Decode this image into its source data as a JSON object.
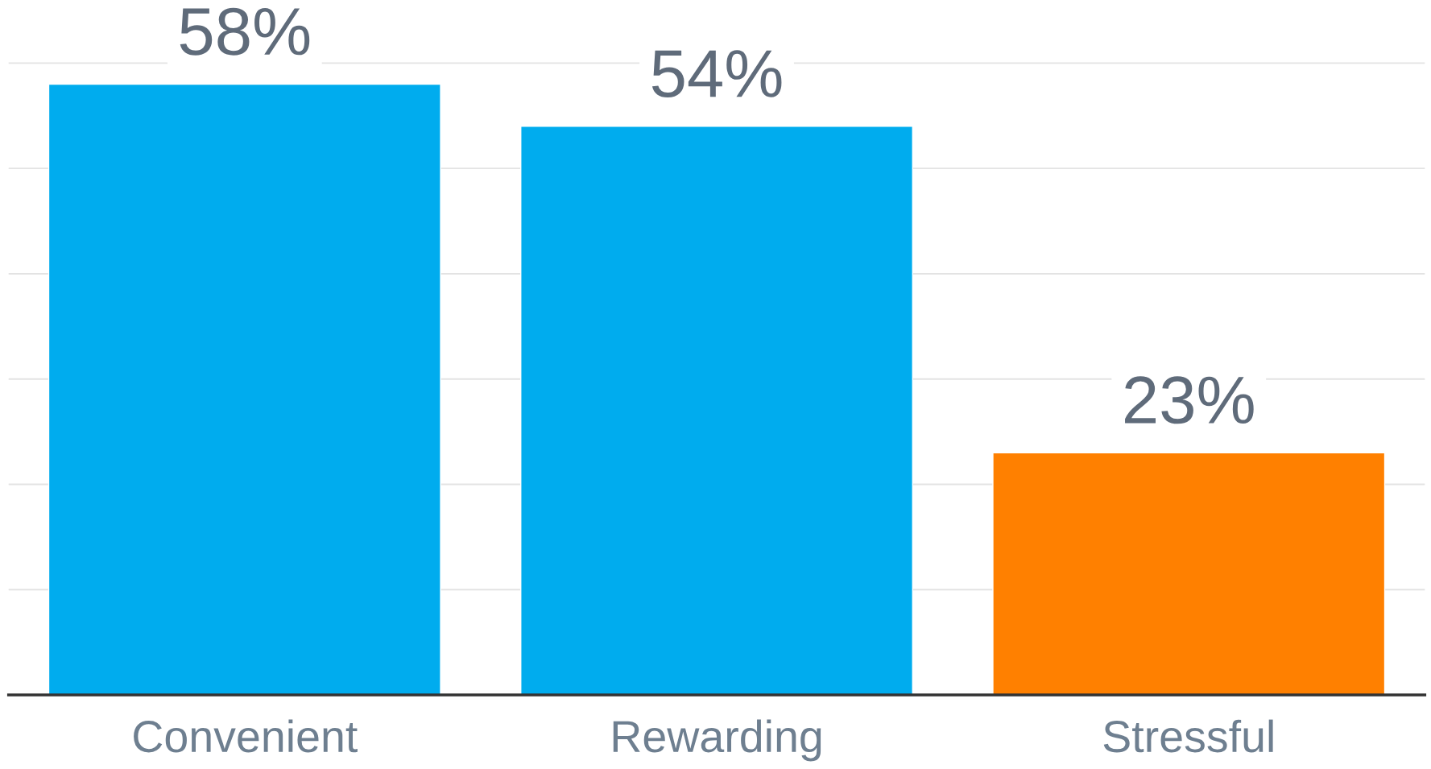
{
  "chart_data": {
    "type": "bar",
    "categories": [
      "Convenient",
      "Rewarding",
      "Stressful"
    ],
    "values": [
      58,
      54,
      23
    ],
    "colors": [
      "#00acee",
      "#00acee",
      "#ff8000"
    ],
    "data_labels": true,
    "value_labels": [
      "58%",
      "54%",
      "23%"
    ],
    "ylim": [
      0,
      66
    ],
    "yticks": [
      {
        "value": 10,
        "label": null
      },
      {
        "value": 20,
        "label": null
      },
      {
        "value": 30,
        "label": null
      },
      {
        "value": 40,
        "label": null
      },
      {
        "value": 50,
        "label": null
      },
      {
        "value": 60,
        "label": null
      }
    ],
    "grid": "y",
    "tick_labels": "x"
  }
}
